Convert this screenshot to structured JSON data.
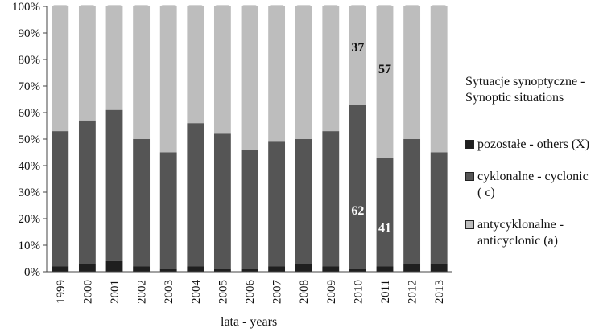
{
  "chart_data": {
    "type": "bar",
    "stacked": true,
    "categories": [
      "1999",
      "2000",
      "2001",
      "2002",
      "2003",
      "2004",
      "2005",
      "2006",
      "2007",
      "2008",
      "2009",
      "2010",
      "2011",
      "2012",
      "2013"
    ],
    "series": [
      {
        "name": "pozostałe - others (X)",
        "color": "#1f1f1f",
        "values": [
          2,
          3,
          4,
          2,
          1,
          2,
          1,
          1,
          2,
          3,
          2,
          1,
          2,
          3,
          3
        ]
      },
      {
        "name": "cyklonalne - cyclonic ( c)",
        "color": "#555555",
        "values": [
          51,
          54,
          57,
          48,
          44,
          54,
          51,
          45,
          47,
          47,
          51,
          62,
          41,
          47,
          42
        ]
      },
      {
        "name": "antycyklonalne - anticyclonic (a)",
        "color": "#bdbdbd",
        "values": [
          47,
          43,
          39,
          50,
          55,
          44,
          48,
          54,
          51,
          50,
          47,
          37,
          57,
          50,
          55
        ]
      }
    ],
    "data_labels": [
      {
        "category": "2010",
        "series": "cyklonalne - cyclonic ( c)",
        "text": "62"
      },
      {
        "category": "2010",
        "series": "antycyklonalne - anticyclonic (a)",
        "text": "37"
      },
      {
        "category": "2011",
        "series": "cyklonalne - cyclonic ( c)",
        "text": "41"
      },
      {
        "category": "2011",
        "series": "antycyklonalne - anticyclonic (a)",
        "text": "57"
      }
    ],
    "yticks": [
      "0%",
      "10%",
      "20%",
      "30%",
      "40%",
      "50%",
      "60%",
      "70%",
      "80%",
      "90%",
      "100%"
    ],
    "ylim": [
      0,
      100
    ],
    "xlabel": "lata - years",
    "ylabel": "",
    "title": "",
    "legend_title": "Sytuacje synoptyczne - Synoptic situations",
    "legend_position": "right",
    "grid": false
  }
}
